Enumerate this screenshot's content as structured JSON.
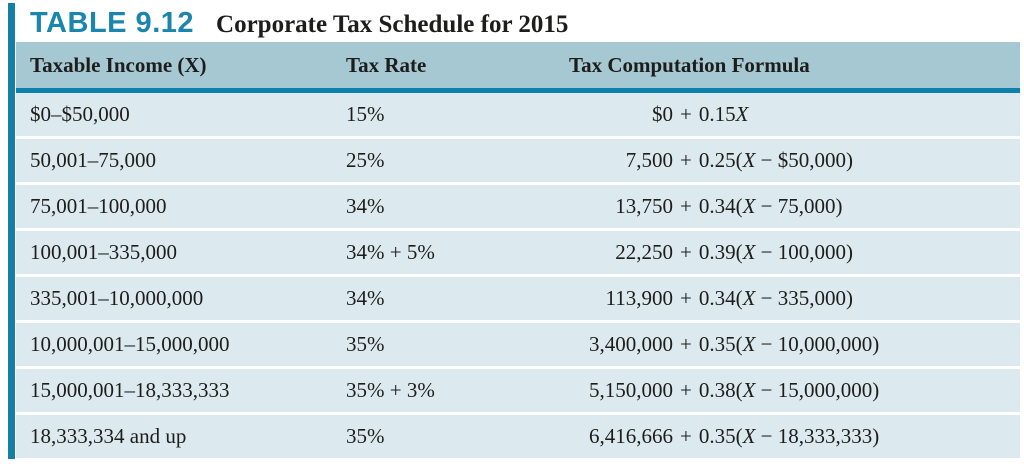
{
  "colors": {
    "accent_teal": "#1b86ad",
    "bar_teal": "#157fa6",
    "header_bg": "#a5c8d3",
    "header_rule": "#0d81ab",
    "row_bg": "#dce9ee",
    "text": "#1d1d1b"
  },
  "header": {
    "table_label": "TABLE 9.12",
    "title": "Corporate Tax Schedule for 2015"
  },
  "table": {
    "columns": [
      "Taxable Income (X)",
      "Tax Rate",
      "Tax Computation Formula"
    ],
    "rows": [
      {
        "income": "$0–$50,000",
        "rate": "15%",
        "formula": {
          "base": "$0",
          "plus": "+",
          "pre": "0.15",
          "x": "X",
          "post": ""
        }
      },
      {
        "income": "50,001–75,000",
        "rate": "25%",
        "formula": {
          "base": "7,500",
          "plus": "+",
          "pre": "0.25(",
          "x": "X",
          "post": " − $50,000)"
        }
      },
      {
        "income": "75,001–100,000",
        "rate": "34%",
        "formula": {
          "base": "13,750",
          "plus": "+",
          "pre": "0.34(",
          "x": "X",
          "post": " − 75,000)"
        }
      },
      {
        "income": "100,001–335,000",
        "rate": "34% + 5%",
        "formula": {
          "base": "22,250",
          "plus": "+",
          "pre": "0.39(",
          "x": "X",
          "post": " − 100,000)"
        }
      },
      {
        "income": "335,001–10,000,000",
        "rate": "34%",
        "formula": {
          "base": "113,900",
          "plus": "+",
          "pre": "0.34(",
          "x": "X",
          "post": " − 335,000)"
        }
      },
      {
        "income": "10,000,001–15,000,000",
        "rate": "35%",
        "formula": {
          "base": "3,400,000",
          "plus": "+",
          "pre": "0.35(",
          "x": "X",
          "post": " − 10,000,000)"
        }
      },
      {
        "income": "15,000,001–18,333,333",
        "rate": "35% + 3%",
        "formula": {
          "base": "5,150,000",
          "plus": "+",
          "pre": "0.38(",
          "x": "X",
          "post": " − 15,000,000)"
        }
      },
      {
        "income": "18,333,334 and up",
        "rate": "35%",
        "formula": {
          "base": "6,416,666",
          "plus": "+",
          "pre": "0.35(",
          "x": "X",
          "post": " − 18,333,333)"
        }
      }
    ]
  }
}
